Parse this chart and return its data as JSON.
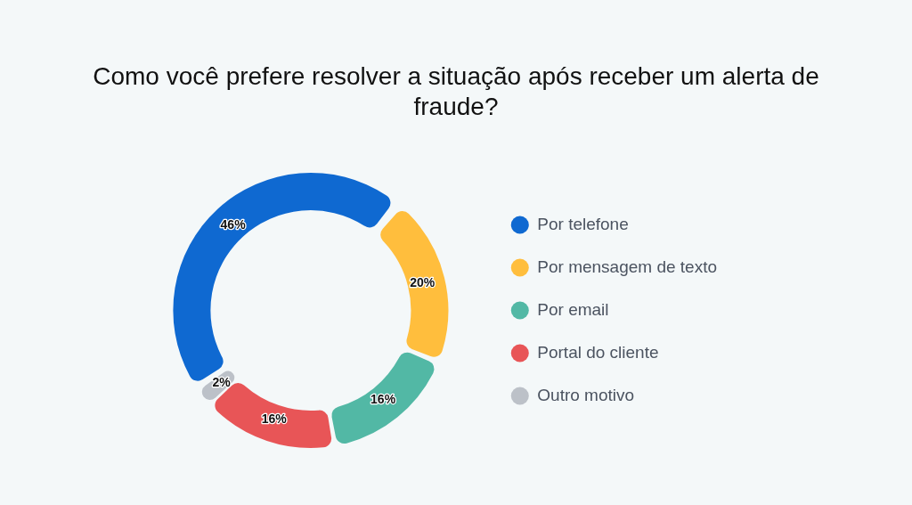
{
  "chart_data": {
    "type": "donut",
    "title": "Como você prefere resolver a situação após receber um alerta de fraude?",
    "categories": [
      "Por telefone",
      "Por mensagem de texto",
      "Por email",
      "Portal do cliente",
      "Outro motivo"
    ],
    "values": [
      46,
      20,
      16,
      16,
      2
    ],
    "colors": [
      "#0f69d1",
      "#ffbe3d",
      "#52b8a5",
      "#e85557",
      "#bcc1c8"
    ],
    "value_labels": [
      "46%",
      "20%",
      "16%",
      "16%",
      "2%"
    ],
    "legend": "right"
  }
}
